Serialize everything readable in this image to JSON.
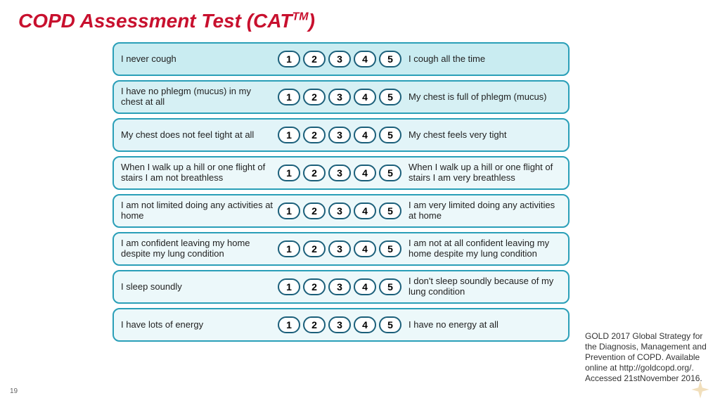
{
  "title_main": "COPD Assessment Test (CAT",
  "title_sup": "TM",
  "title_close": ")",
  "page_number": "19",
  "scale_values": [
    "1",
    "2",
    "3",
    "4",
    "5"
  ],
  "row_style": {
    "border_color": "#2a9fb8",
    "bg_colors": [
      "#c9ecf1",
      "#d6f0f4",
      "#e2f4f8",
      "#ecf8fa",
      "#ecf8fa",
      "#ecf8fa",
      "#ecf8fa",
      "#ecf8fa"
    ]
  },
  "rows": [
    {
      "left": "I never cough",
      "right": "I cough all the time"
    },
    {
      "left": "I have no phlegm (mucus) in my chest at all",
      "right": "My chest is full of phlegm (mucus)"
    },
    {
      "left": "My chest does not feel tight at all",
      "right": "My chest feels very tight"
    },
    {
      "left": "When I walk up a hill or one flight of stairs I am not breathless",
      "right": "When I walk up a hill or one flight of stairs I am very breathless"
    },
    {
      "left": "I am not limited doing any activities at home",
      "right": "I am very limited doing any activities at home"
    },
    {
      "left": "I am confident leaving my home despite my lung condition",
      "right": "I am not at all confident leaving my home despite my lung condition"
    },
    {
      "left": "I sleep soundly",
      "right": "I don't sleep soundly because of my lung condition"
    },
    {
      "left": "I have lots of energy",
      "right": "I have no energy at all"
    }
  ],
  "citation": "GOLD 2017 Global Strategy for the Diagnosis, Management and Prevention of COPD. Available online at http://goldcopd.org/. Accessed 21stNovember 2016."
}
